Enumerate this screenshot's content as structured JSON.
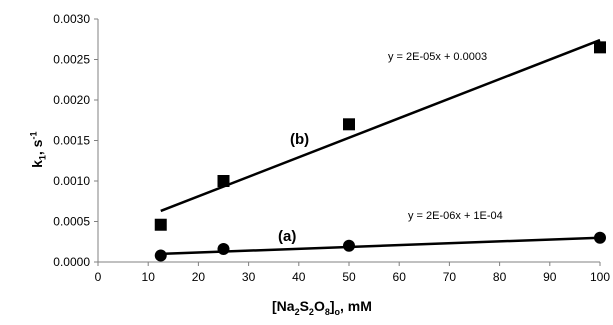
{
  "chart_data": {
    "type": "scatter",
    "xlabel": {
      "pre": "[Na",
      "s1": "2",
      "mid1": "S",
      "s2": "2",
      "mid2": "O",
      "s3": "8",
      "post": "]",
      "s4": "o",
      "tail": ", mM"
    },
    "ylabel": {
      "base": "k",
      "sub": "1",
      "unit": ", s",
      "sup": "-1"
    },
    "xlim": [
      0,
      100
    ],
    "ylim": [
      0,
      0.003
    ],
    "x_ticks": [
      "0",
      "10",
      "20",
      "30",
      "40",
      "50",
      "60",
      "70",
      "80",
      "90",
      "100"
    ],
    "y_ticks": [
      "0.0000",
      "0.0005",
      "0.0010",
      "0.0015",
      "0.0020",
      "0.0025",
      "0.0030"
    ],
    "series": [
      {
        "name": "(b)",
        "marker": "square",
        "x": [
          12.5,
          25,
          50,
          100
        ],
        "y": [
          0.00046,
          0.001,
          0.0017,
          0.00265
        ],
        "trendline": {
          "x": [
            12.5,
            100
          ],
          "y": [
            0.00063,
            0.00274
          ]
        },
        "equation": "y = 2E-05x + 0.0003"
      },
      {
        "name": "(a)",
        "marker": "circle",
        "x": [
          12.5,
          25,
          50,
          100
        ],
        "y": [
          8e-05,
          0.00016,
          0.0002,
          0.0003
        ],
        "trendline": {
          "x": [
            12.5,
            100
          ],
          "y": [
            0.0001,
            0.0003
          ]
        },
        "equation": "y = 2E-06x + 1E-04"
      }
    ],
    "grid": false,
    "colors": {
      "marks": "#000000",
      "axis": "#808080"
    }
  }
}
